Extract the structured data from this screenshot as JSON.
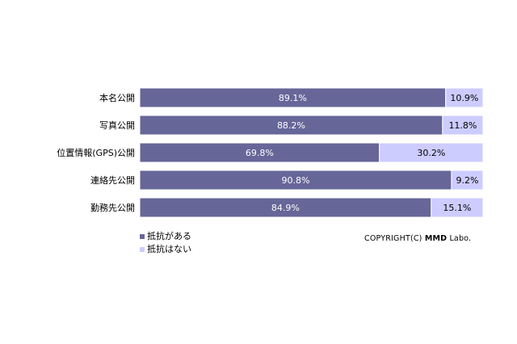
{
  "chart_data": {
    "type": "bar",
    "orientation": "horizontal",
    "stacked": true,
    "percent": true,
    "categories": [
      "本名公開",
      "写真公開",
      "位置情報(GPS)公開",
      "連絡先公開",
      "勤務先公開"
    ],
    "series": [
      {
        "name": "抵抗がある",
        "values": [
          89.1,
          88.2,
          69.8,
          90.8,
          84.9
        ],
        "labels": [
          "89.1%",
          "88.2%",
          "69.8%",
          "90.8%",
          "84.9%"
        ],
        "color": "#666699"
      },
      {
        "name": "抵抗はない",
        "values": [
          10.9,
          11.8,
          30.2,
          9.2,
          15.1
        ],
        "labels": [
          "10.9%",
          "11.8%",
          "30.2%",
          "9.2%",
          "15.1%"
        ],
        "color": "#ccccff"
      }
    ],
    "xlim": [
      0,
      100
    ],
    "grid": false,
    "legend_position": "bottom-left"
  },
  "colors": {
    "segment_border": "#ffffff",
    "label_on_dark": "#ffffff",
    "label_on_light": "#000000"
  },
  "copyright": {
    "prefix": "COPYRIGHT(C) ",
    "brand": "MMD",
    "suffix": " Labo."
  }
}
